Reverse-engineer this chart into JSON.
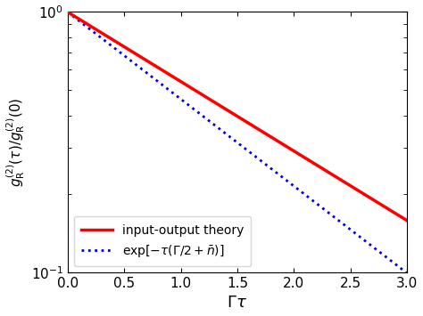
{
  "title": "",
  "xlabel": "$\\Gamma\\tau$",
  "ylabel": "$g_{\\mathrm{R}}^{(2)}(\\tau)/g_{\\mathrm{R}}^{(2)}(0)$",
  "xlim": [
    0.0,
    3.0
  ],
  "ylim": [
    0.1,
    1.0
  ],
  "x_ticks": [
    0.0,
    0.5,
    1.0,
    1.5,
    2.0,
    2.5,
    3.0
  ],
  "rate_blue": 0.77,
  "line1_color": "#ff0000",
  "line1_label": "input-output theory",
  "line1_lw": 2.5,
  "line2_color": "#0000dd",
  "line2_label": "$\\exp[-\\tau(\\Gamma/2+\\bar{n})]$",
  "line2_lw": 2.0,
  "legend_loc": "lower left",
  "background_color": "#ffffff",
  "figsize": [
    4.74,
    3.55
  ],
  "dpi": 100
}
